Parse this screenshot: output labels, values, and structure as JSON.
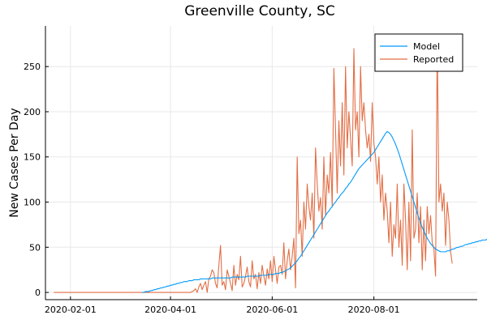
{
  "chart_data": {
    "type": "line",
    "title": "Greenville County, SC",
    "xlabel": "",
    "ylabel": "New Cases Per Day",
    "x_start_date": "2020-01-22",
    "x_end_date": "2020-09-27",
    "xlim": [
      "2020-01-17",
      "2020-10-02"
    ],
    "ylim": [
      -8,
      295
    ],
    "x_ticks": [
      "2020-02-01",
      "2020-04-01",
      "2020-06-01",
      "2020-08-01"
    ],
    "y_ticks": [
      0,
      50,
      100,
      150,
      200,
      250
    ],
    "grid": true,
    "legend_position": "top-right",
    "series": [
      {
        "name": "Model",
        "color": "#009AF9",
        "start_date": "2020-03-15",
        "values": [
          0,
          0,
          1,
          1,
          1,
          2,
          2,
          3,
          3,
          4,
          4,
          5,
          5,
          6,
          6,
          7,
          7,
          8,
          8,
          9,
          9,
          10,
          10,
          11,
          11,
          12,
          12,
          12,
          13,
          13,
          13,
          14,
          14,
          14,
          14,
          15,
          15,
          15,
          15,
          15,
          15,
          15,
          16,
          16,
          16,
          16,
          16,
          16,
          16,
          16,
          16,
          16,
          16,
          16,
          17,
          17,
          17,
          17,
          17,
          17,
          17,
          17,
          17,
          18,
          18,
          18,
          18,
          18,
          18,
          18,
          18,
          19,
          19,
          19,
          19,
          19,
          20,
          20,
          20,
          20,
          21,
          21,
          21,
          22,
          22,
          23,
          24,
          25,
          26,
          27,
          29,
          31,
          33,
          35,
          38,
          40,
          43,
          46,
          49,
          52,
          55,
          58,
          61,
          64,
          67,
          70,
          73,
          76,
          79,
          82,
          85,
          88,
          90,
          93,
          95,
          98,
          100,
          103,
          105,
          108,
          110,
          112,
          115,
          117,
          120,
          122,
          125,
          128,
          131,
          134,
          137,
          139,
          141,
          143,
          145,
          147,
          149,
          151,
          153,
          155,
          158,
          161,
          164,
          167,
          170,
          173,
          176,
          178,
          177,
          175,
          172,
          168,
          164,
          159,
          154,
          148,
          142,
          136,
          130,
          124,
          118,
          112,
          106,
          100,
          94,
          88,
          82,
          77,
          72,
          68,
          64,
          60,
          57,
          54,
          52,
          50,
          48,
          47,
          46,
          45,
          45,
          45,
          45,
          46,
          46,
          47,
          48,
          48,
          49,
          50,
          50,
          51,
          51,
          52,
          53,
          53,
          54,
          54,
          55,
          55,
          56,
          56,
          57,
          57,
          58,
          58,
          58,
          59,
          59,
          59,
          59
        ]
      },
      {
        "name": "Reported",
        "color": "#E26F46",
        "start_date": "2020-01-22",
        "values": [
          0,
          0,
          0,
          0,
          0,
          0,
          0,
          0,
          0,
          0,
          0,
          0,
          0,
          0,
          0,
          0,
          0,
          0,
          0,
          0,
          0,
          0,
          0,
          0,
          0,
          0,
          0,
          0,
          0,
          0,
          0,
          0,
          0,
          0,
          0,
          0,
          0,
          0,
          0,
          0,
          0,
          0,
          0,
          0,
          0,
          0,
          0,
          0,
          0,
          0,
          0,
          0,
          0,
          0,
          0,
          0,
          0,
          0,
          0,
          0,
          0,
          0,
          0,
          0,
          0,
          0,
          0,
          0,
          0,
          0,
          0,
          0,
          0,
          0,
          0,
          0,
          0,
          0,
          0,
          0,
          0,
          0,
          0,
          1,
          2,
          4,
          0,
          6,
          10,
          3,
          8,
          12,
          0,
          15,
          18,
          25,
          22,
          10,
          5,
          30,
          52,
          8,
          12,
          3,
          25,
          18,
          10,
          2,
          30,
          8,
          20,
          14,
          40,
          6,
          10,
          18,
          28,
          12,
          6,
          35,
          15,
          20,
          4,
          22,
          10,
          30,
          18,
          8,
          26,
          15,
          35,
          12,
          40,
          25,
          10,
          28,
          30,
          20,
          55,
          15,
          35,
          48,
          25,
          40,
          60,
          5,
          150,
          65,
          80,
          40,
          100,
          70,
          120,
          95,
          80,
          110,
          60,
          160,
          120,
          90,
          105,
          70,
          150,
          85,
          130,
          110,
          155,
          95,
          248,
          180,
          110,
          190,
          140,
          210,
          130,
          250,
          160,
          200,
          170,
          140,
          270,
          180,
          200,
          150,
          250,
          190,
          210,
          180,
          160,
          175,
          145,
          210,
          165,
          150,
          120,
          150,
          100,
          130,
          80,
          110,
          90,
          55,
          100,
          40,
          75,
          60,
          120,
          50,
          80,
          30,
          120,
          80,
          25,
          100,
          35,
          180,
          60,
          70,
          110,
          55,
          95,
          25,
          80,
          35,
          95,
          65,
          85,
          55,
          48,
          18,
          282,
          100,
          120,
          90,
          110,
          52,
          100,
          80,
          45,
          32
        ]
      }
    ]
  }
}
